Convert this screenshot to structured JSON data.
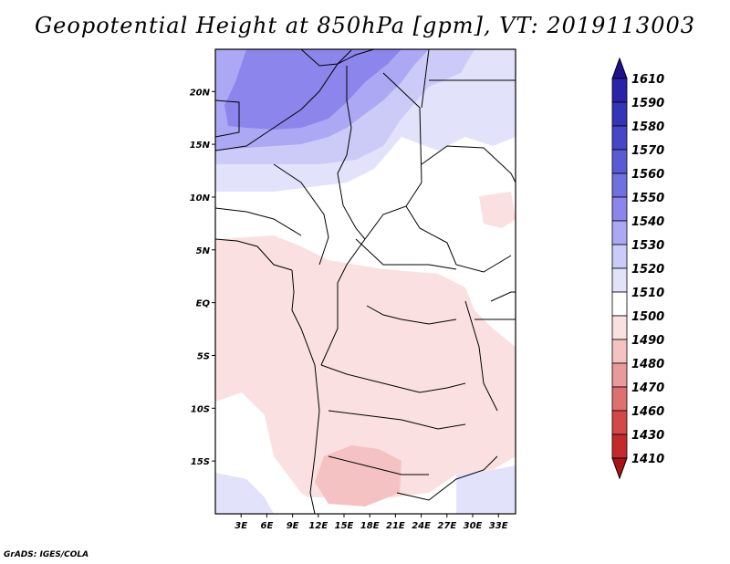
{
  "title": "Geopotential Height at 850hPa [gpm], VT: 2019113003",
  "credit": "GrADS: IGES/COLA",
  "map": {
    "lat_range": [
      -20,
      24
    ],
    "lon_range": [
      0,
      35
    ],
    "lat_ticks": [
      "20N",
      "15N",
      "10N",
      "5N",
      "EQ",
      "5S",
      "10S",
      "15S"
    ],
    "lat_tick_values": [
      20,
      15,
      10,
      5,
      0,
      -5,
      -10,
      -15
    ],
    "lon_ticks": [
      "3E",
      "6E",
      "9E",
      "12E",
      "15E",
      "18E",
      "21E",
      "24E",
      "27E",
      "30E",
      "33E"
    ],
    "lon_tick_values": [
      3,
      6,
      9,
      12,
      15,
      18,
      21,
      24,
      27,
      30,
      33
    ]
  },
  "colorbar": {
    "labels": [
      "1610",
      "1590",
      "1580",
      "1570",
      "1560",
      "1550",
      "1540",
      "1530",
      "1520",
      "1510",
      "1500",
      "1490",
      "1480",
      "1470",
      "1460",
      "1430",
      "1410"
    ],
    "colors": [
      "#201090",
      "#2a22a8",
      "#3434b8",
      "#4646c8",
      "#5a5ad4",
      "#7070e0",
      "#8c86ec",
      "#ada8f4",
      "#cccbf7",
      "#e2e2fb",
      "#ffffff",
      "#fae0e0",
      "#f4c2c2",
      "#e99a9a",
      "#de7070",
      "#d44848",
      "#c42a2a",
      "#aa1414"
    ]
  },
  "legend_colors": {
    "ocean_white": "#ffffff",
    "pink_light": "#fae0e0",
    "pink_mid": "#f4c2c2",
    "lav_light": "#e2e2fb",
    "lav_mid": "#cccbf7",
    "lav_dark": "#ada8f4",
    "lav_darker": "#8c86ec"
  }
}
